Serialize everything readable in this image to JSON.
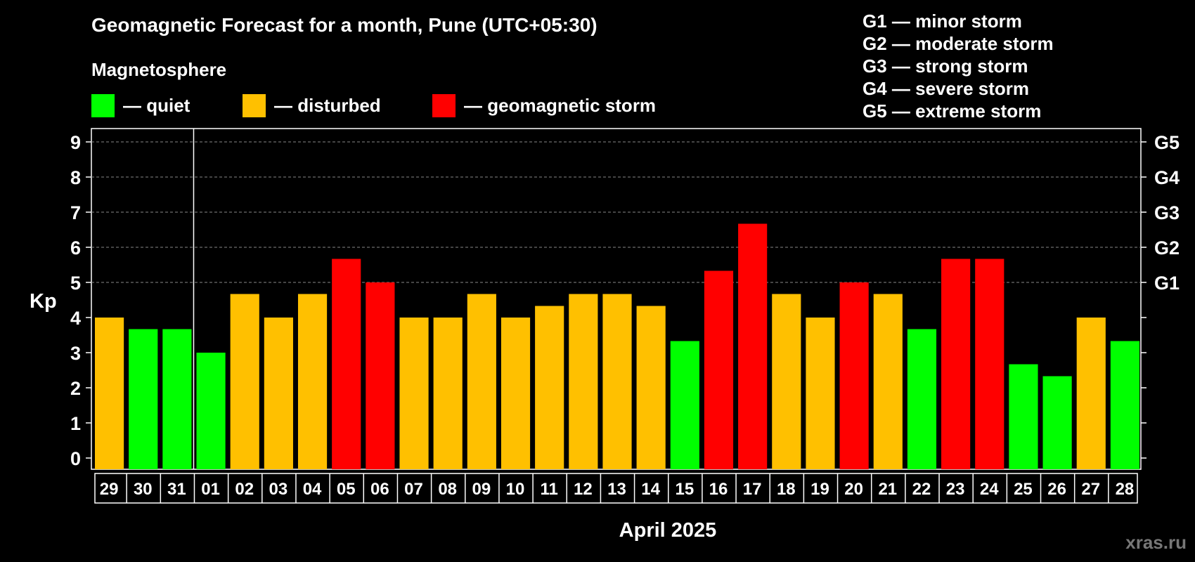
{
  "header": {
    "title": "Geomagnetic Forecast for a month, Pune (UTC+05:30)",
    "subtitle": "Magnetosphere"
  },
  "legend": [
    {
      "label": "— quiet",
      "color": "#00ff00"
    },
    {
      "label": "— disturbed",
      "color": "#ffc000"
    },
    {
      "label": "— geomagnetic storm",
      "color": "#ff0000"
    }
  ],
  "storm_scale": [
    "G1 — minor storm",
    "G2 — moderate storm",
    "G3 — strong storm",
    "G4 — severe storm",
    "G5 — extreme storm"
  ],
  "watermark": "xras.ru",
  "chart_data": {
    "type": "bar",
    "ylabel": "Kp",
    "xlabel": "April 2025",
    "ylim": [
      0,
      9
    ],
    "yticks": [
      0,
      1,
      2,
      3,
      4,
      5,
      6,
      7,
      8,
      9
    ],
    "right_ticks": [
      {
        "y": 5,
        "label": "G1"
      },
      {
        "y": 6,
        "label": "G2"
      },
      {
        "y": 7,
        "label": "G3"
      },
      {
        "y": 8,
        "label": "G4"
      },
      {
        "y": 9,
        "label": "G5"
      }
    ],
    "grid_y": [
      5,
      6,
      7,
      8,
      9
    ],
    "month_boundary_after": "31",
    "categories": [
      "29",
      "30",
      "31",
      "01",
      "02",
      "03",
      "04",
      "05",
      "06",
      "07",
      "08",
      "09",
      "10",
      "11",
      "12",
      "13",
      "14",
      "15",
      "16",
      "17",
      "18",
      "19",
      "20",
      "21",
      "22",
      "23",
      "24",
      "25",
      "26",
      "27",
      "28"
    ],
    "values": [
      4.0,
      3.67,
      3.67,
      3.0,
      4.67,
      4.0,
      4.67,
      5.67,
      5.0,
      4.0,
      4.0,
      4.67,
      4.0,
      4.33,
      4.67,
      4.67,
      4.33,
      3.33,
      5.33,
      6.67,
      4.67,
      4.0,
      5.0,
      4.67,
      3.67,
      5.67,
      5.67,
      2.67,
      2.33,
      4.0,
      3.33
    ],
    "levels": [
      "disturbed",
      "quiet",
      "quiet",
      "quiet",
      "disturbed",
      "disturbed",
      "disturbed",
      "storm",
      "storm",
      "disturbed",
      "disturbed",
      "disturbed",
      "disturbed",
      "disturbed",
      "disturbed",
      "disturbed",
      "disturbed",
      "quiet",
      "storm",
      "storm",
      "disturbed",
      "disturbed",
      "storm",
      "disturbed",
      "quiet",
      "storm",
      "storm",
      "quiet",
      "quiet",
      "disturbed",
      "quiet"
    ],
    "level_colors": {
      "quiet": "#00ff00",
      "disturbed": "#ffc000",
      "storm": "#ff0000"
    }
  }
}
